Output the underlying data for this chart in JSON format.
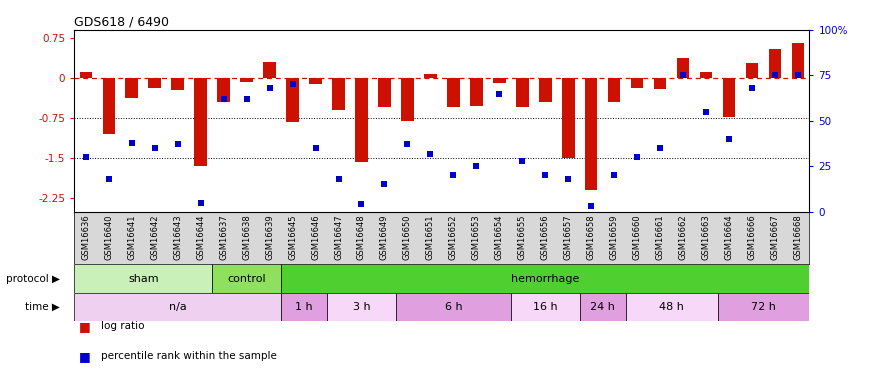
{
  "title": "GDS618 / 6490",
  "samples": [
    "GSM16636",
    "GSM16640",
    "GSM16641",
    "GSM16642",
    "GSM16643",
    "GSM16644",
    "GSM16637",
    "GSM16638",
    "GSM16639",
    "GSM16645",
    "GSM16646",
    "GSM16647",
    "GSM16648",
    "GSM16649",
    "GSM16650",
    "GSM16651",
    "GSM16652",
    "GSM16653",
    "GSM16654",
    "GSM16655",
    "GSM16656",
    "GSM16657",
    "GSM16658",
    "GSM16659",
    "GSM16660",
    "GSM16661",
    "GSM16662",
    "GSM16663",
    "GSM16664",
    "GSM16666",
    "GSM16667",
    "GSM16668"
  ],
  "log_ratio": [
    0.12,
    -1.05,
    -0.38,
    -0.18,
    -0.22,
    -1.65,
    -0.45,
    -0.08,
    0.3,
    -0.83,
    -0.12,
    -0.6,
    -1.57,
    -0.55,
    -0.8,
    0.07,
    -0.55,
    -0.52,
    -0.1,
    -0.55,
    -0.45,
    -1.5,
    -2.1,
    -0.45,
    -0.18,
    -0.2,
    0.38,
    0.12,
    -0.72,
    0.28,
    0.55,
    0.65
  ],
  "percentile_rank": [
    30,
    18,
    38,
    35,
    37,
    5,
    62,
    62,
    68,
    70,
    35,
    18,
    4,
    15,
    37,
    32,
    20,
    25,
    65,
    28,
    20,
    18,
    3,
    20,
    30,
    35,
    75,
    55,
    40,
    68,
    75,
    75
  ],
  "protocol_groups": [
    {
      "label": "sham",
      "start": 0,
      "end": 6,
      "color": "#c8f0b8"
    },
    {
      "label": "control",
      "start": 6,
      "end": 9,
      "color": "#90e060"
    },
    {
      "label": "hemorrhage",
      "start": 9,
      "end": 32,
      "color": "#50d030"
    }
  ],
  "time_groups": [
    {
      "label": "n/a",
      "start": 0,
      "end": 9,
      "color": "#f0d0f0"
    },
    {
      "label": "1 h",
      "start": 9,
      "end": 11,
      "color": "#e0a0e0"
    },
    {
      "label": "3 h",
      "start": 11,
      "end": 14,
      "color": "#f8d8f8"
    },
    {
      "label": "6 h",
      "start": 14,
      "end": 19,
      "color": "#e0a0e0"
    },
    {
      "label": "16 h",
      "start": 19,
      "end": 22,
      "color": "#f8d8f8"
    },
    {
      "label": "24 h",
      "start": 22,
      "end": 24,
      "color": "#e0a0e0"
    },
    {
      "label": "48 h",
      "start": 24,
      "end": 28,
      "color": "#f8d8f8"
    },
    {
      "label": "72 h",
      "start": 28,
      "end": 32,
      "color": "#e0a0e0"
    }
  ],
  "bar_color": "#cc1100",
  "dot_color": "#0000cc",
  "ylim_left": [
    -2.5,
    0.9
  ],
  "ylim_right": [
    0,
    100
  ],
  "yticks_left": [
    0.75,
    0,
    -0.75,
    -1.5,
    -2.25
  ],
  "yticks_right": [
    0,
    25,
    50,
    75,
    100
  ],
  "background_color": "#ffffff",
  "sample_bg_color": "#d8d8d8"
}
